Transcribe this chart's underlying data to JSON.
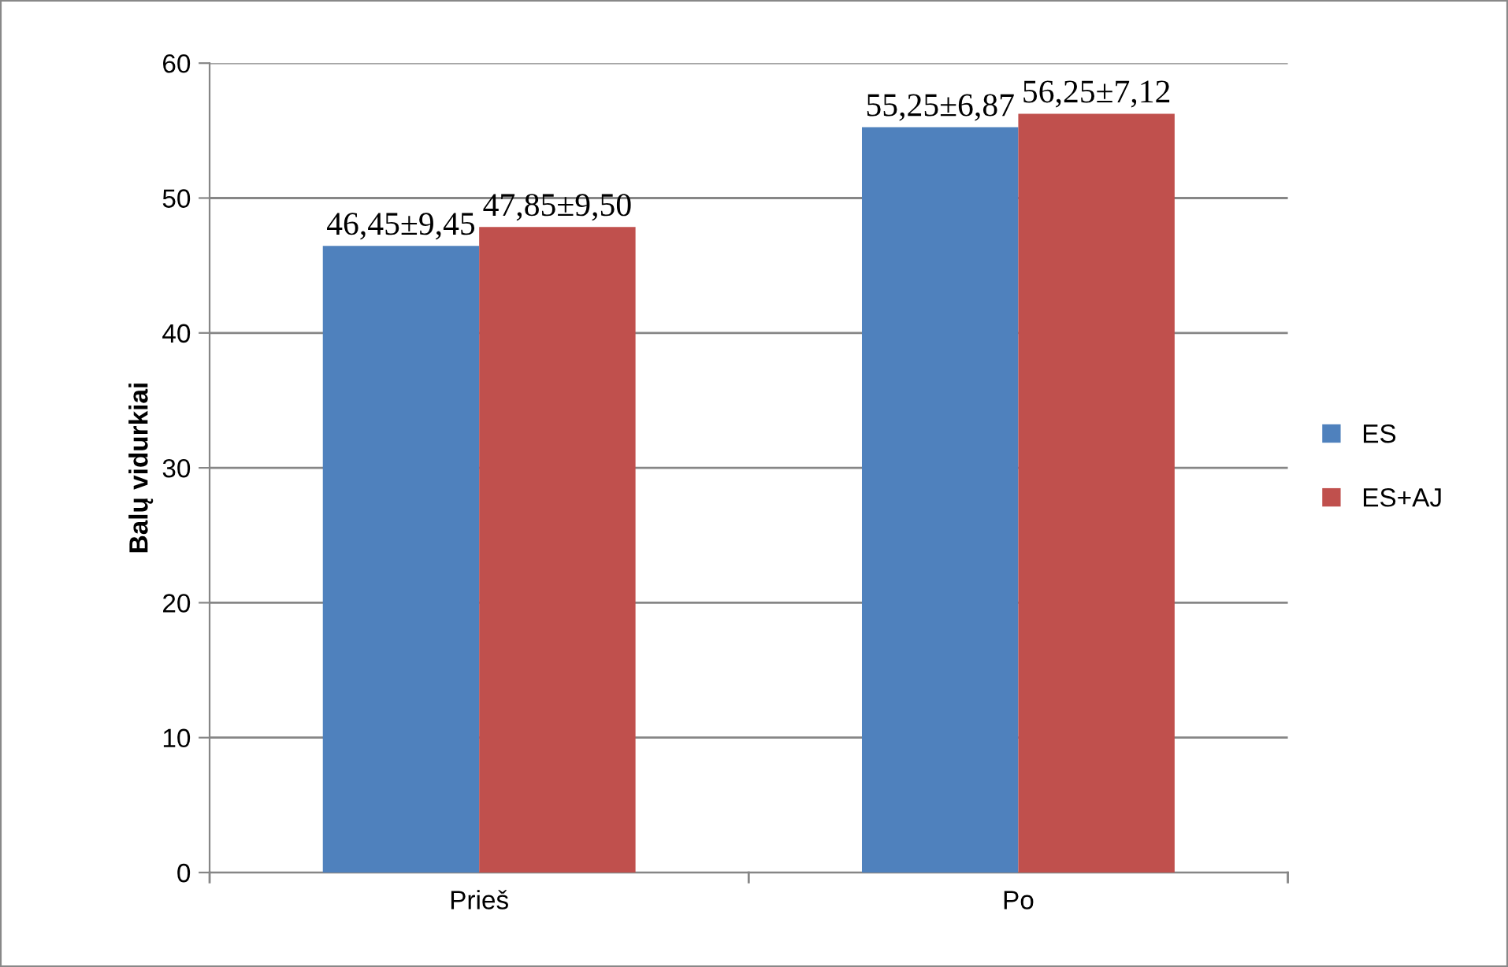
{
  "chart_data": {
    "type": "bar",
    "ylabel": "Balų vidurkiai",
    "categories": [
      "Prieš",
      "Po"
    ],
    "series": [
      {
        "name": "ES",
        "color": "#4f81bd",
        "values": [
          46.45,
          55.25
        ],
        "value_labels": [
          "46,45±9,45",
          "55,25±6,87"
        ]
      },
      {
        "name": "ES+AJ",
        "color": "#c0504d",
        "values": [
          47.85,
          56.25
        ],
        "value_labels": [
          "47,85±9,50",
          "56,25±7,12"
        ]
      }
    ],
    "ylim": [
      0,
      60
    ],
    "yticks": [
      0,
      10,
      20,
      30,
      40,
      50,
      60
    ],
    "grid": "y",
    "legend": "right"
  }
}
